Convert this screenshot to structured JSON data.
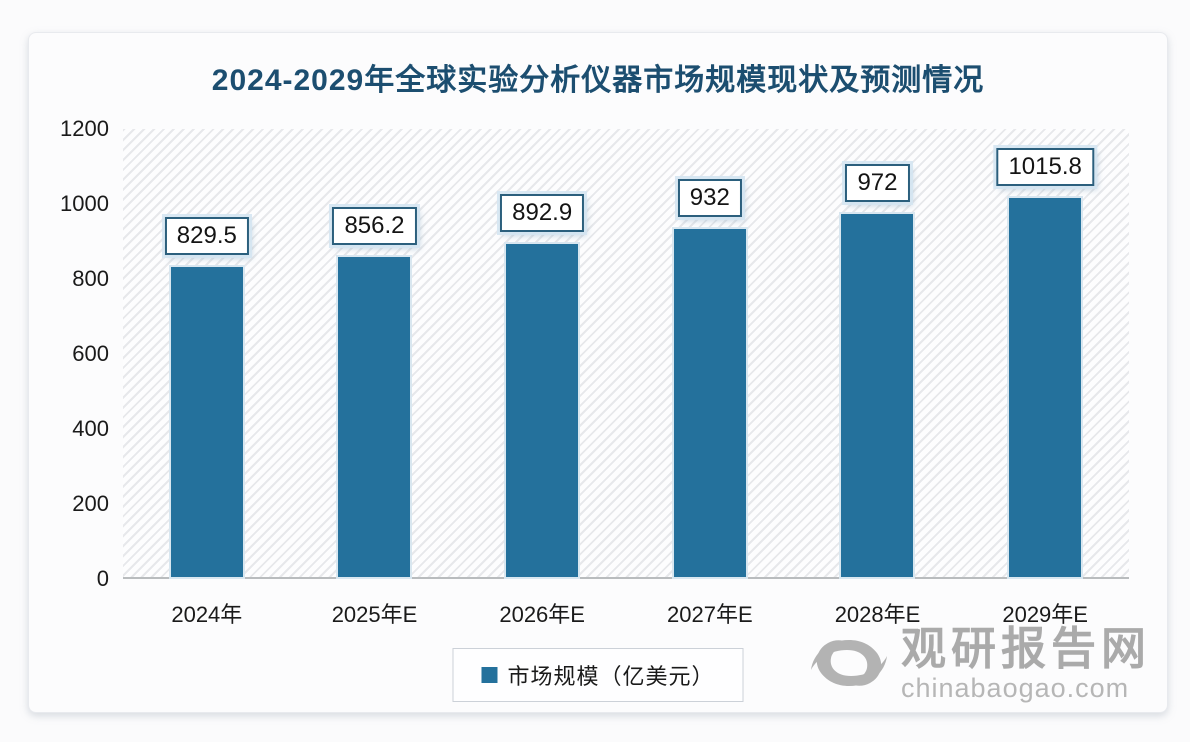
{
  "chart_data": {
    "type": "bar",
    "title": "2024-2029年全球实验分析仪器市场规模现状及预测情况",
    "categories": [
      "2024年",
      "2025年E",
      "2026年E",
      "2027年E",
      "2028年E",
      "2029年E"
    ],
    "values": [
      829.5,
      856.2,
      892.9,
      932,
      972,
      1015.8
    ],
    "series_name": "市场规模（亿美元）",
    "xlabel": "",
    "ylabel": "",
    "ylim": [
      0,
      1200
    ],
    "yticks": [
      0,
      200,
      400,
      600,
      800,
      1000,
      1200
    ],
    "grid": false,
    "legend_position": "bottom",
    "value_labels": [
      "829.5",
      "856.2",
      "892.9",
      "932",
      "972",
      "1015.8"
    ],
    "colors": {
      "bar": "#24719C",
      "title": "#1C4E70",
      "chip_border": "#2B5F7D",
      "axis_line": "#B9BCBE",
      "tick_text": "#1A1A1A"
    }
  },
  "legend": {
    "label": "市场规模（亿美元）",
    "marker_color": "#24719C"
  },
  "watermark": {
    "brand": "观研报告网",
    "url_text": "chinabaogao.com"
  }
}
